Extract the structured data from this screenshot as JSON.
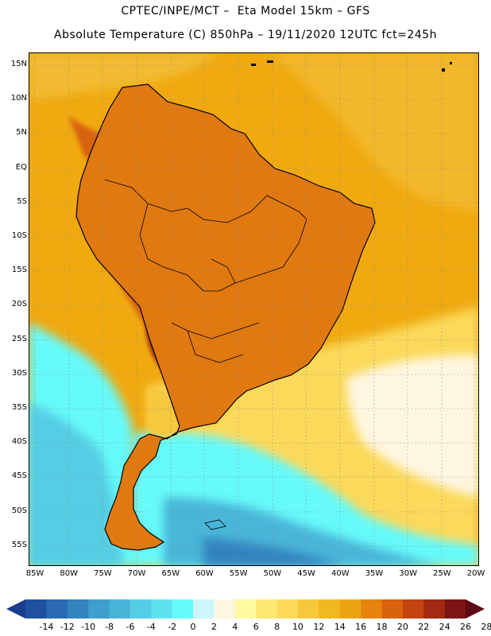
{
  "header": {
    "title_line1": "CPTEC/INPE/MCT –  Eta Model 15km – GFS",
    "title_line2": "Absolute Temperature (C) 850hPa – 19/11/2020 12UTC fct=245h"
  },
  "map": {
    "lat_labels": [
      "15N",
      "10N",
      "5N",
      "EQ",
      "5S",
      "10S",
      "15S",
      "20S",
      "25S",
      "30S",
      "35S",
      "40S",
      "45S",
      "50S",
      "55S"
    ],
    "lon_labels": [
      "85W",
      "80W",
      "75W",
      "70W",
      "65W",
      "60W",
      "55W",
      "50W",
      "45W",
      "40W",
      "35W",
      "30W",
      "25W",
      "20W"
    ],
    "colors": {
      "ocean_warm": "#f0aa10",
      "ocean_warm2": "#f0b82a",
      "land_hot": "#d8620e",
      "land_very_hot": "#a83010",
      "land_extreme": "#6e1010",
      "cool_mid": "#fee46a",
      "cool_light": "#fff7d6",
      "cold_cyan": "#5cefef",
      "cold_blue": "#46bde4",
      "coast": "#000000"
    }
  },
  "colorbar": {
    "tick_labels": [
      "-14",
      "-12",
      "-10",
      "-8",
      "-6",
      "-4",
      "-2",
      "0",
      "2",
      "4",
      "6",
      "8",
      "10",
      "12",
      "14",
      "16",
      "18",
      "20",
      "22",
      "24",
      "26",
      "28"
    ],
    "colors": [
      "#1a3c8c",
      "#1f51a0",
      "#2a6ab4",
      "#3383bf",
      "#3f9fcc",
      "#48b5d8",
      "#55cde4",
      "#5ee3ee",
      "#66fafa",
      "#cff6fb",
      "#fff6e0",
      "#fff9a0",
      "#fde873",
      "#fbd95a",
      "#f6c83c",
      "#f0b822",
      "#eda414",
      "#e7840e",
      "#d8620e",
      "#c2440e",
      "#a32a12",
      "#7c1414",
      "#5e0a14"
    ]
  }
}
